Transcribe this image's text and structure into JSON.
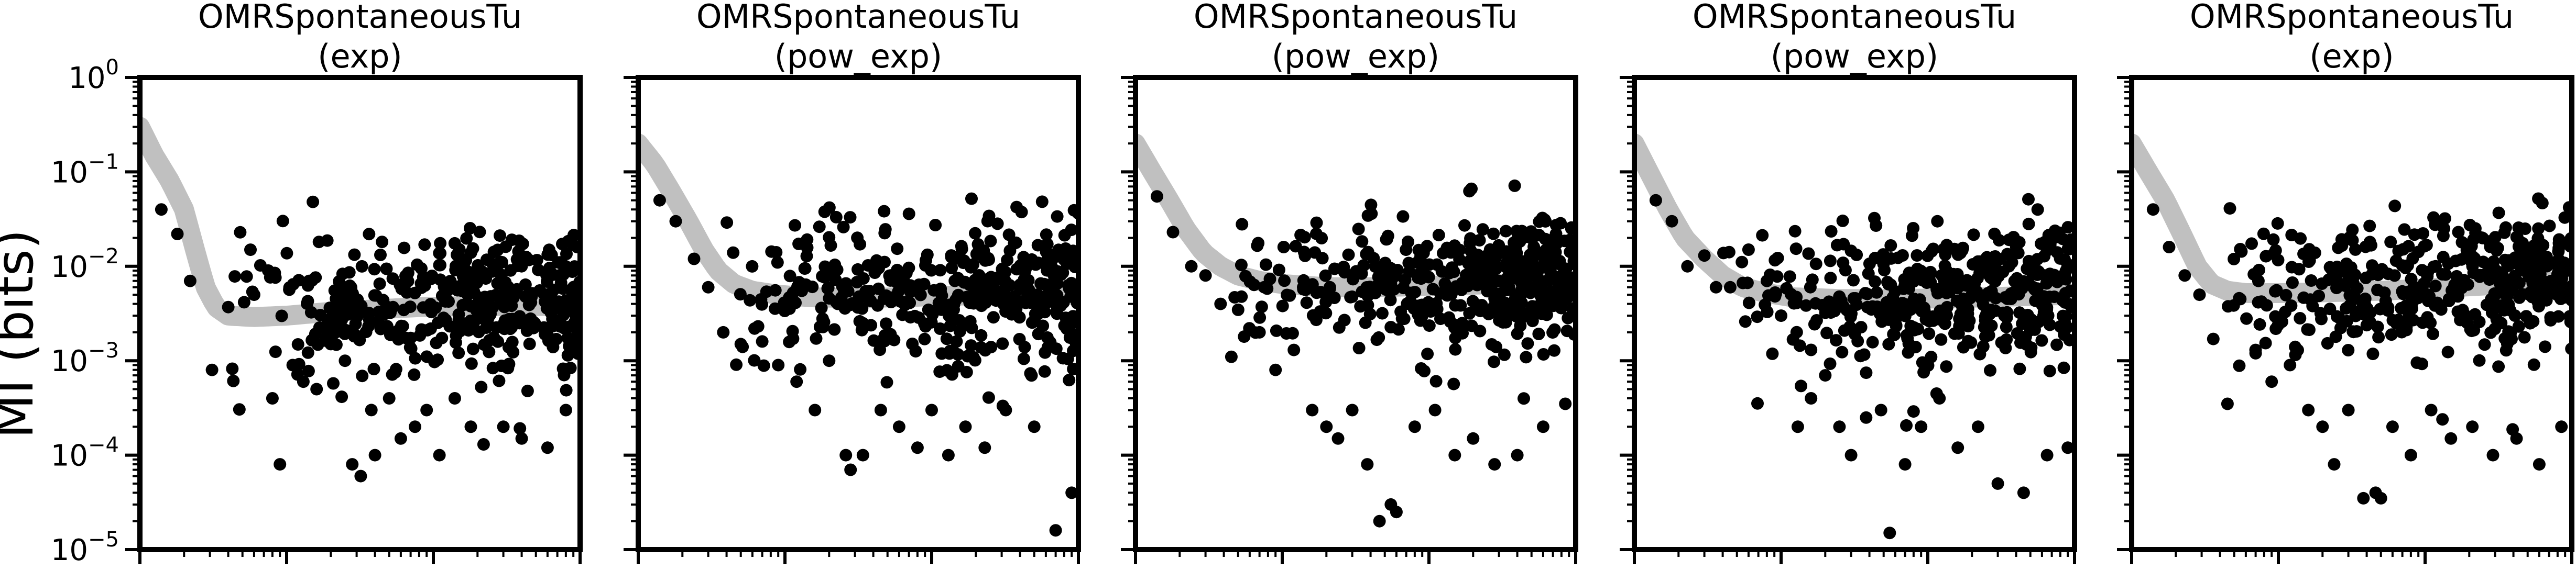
{
  "figure": {
    "ylabel": "MI (bits)"
  },
  "chart_data": [
    {
      "type": "scatter",
      "title": "OMRSpontaneousTu\n(exp)",
      "ylabel": "MI (bits)",
      "xlabel": "",
      "yscale": "log",
      "xscale": "log",
      "ylim": [
        1e-05,
        1
      ],
      "xlim": [
        1,
        1000
      ],
      "yticks": [
        1,
        0.1,
        0.01,
        0.001,
        0.0001,
        1e-05
      ],
      "ytick_labels": [
        "10^0",
        "10^-1",
        "10^-2",
        "10^-3",
        "10^-4",
        "10^-5"
      ],
      "fit_color": "#c0c0c0",
      "point_color": "#000000",
      "fit_curve": [
        [
          1.0,
          0.3
        ],
        [
          1.25,
          0.15
        ],
        [
          1.6,
          0.08
        ],
        [
          2.0,
          0.04
        ],
        [
          2.4,
          0.014
        ],
        [
          2.8,
          0.006
        ],
        [
          3.3,
          0.0037
        ],
        [
          4.0,
          0.003
        ],
        [
          6.0,
          0.0029
        ],
        [
          10.0,
          0.003
        ],
        [
          20.0,
          0.0033
        ],
        [
          40.0,
          0.0035
        ],
        [
          80.0,
          0.0037
        ],
        [
          200.0,
          0.0038
        ],
        [
          1000.0,
          0.0038
        ]
      ],
      "seed": 11,
      "n_points": 420,
      "points": [
        [
          1.4,
          0.04
        ],
        [
          1.8,
          0.022
        ],
        [
          2.2,
          0.007
        ],
        [
          3.1,
          0.0008
        ],
        [
          4.0,
          0.0037
        ],
        [
          6.0,
          0.005
        ],
        [
          8.0,
          0.0004
        ],
        [
          9.0,
          8e-05
        ],
        [
          11.0,
          0.0009
        ],
        [
          13.0,
          0.0006
        ],
        [
          16.0,
          0.0005
        ],
        [
          20.0,
          0.0015
        ],
        [
          25.0,
          0.001
        ],
        [
          28.0,
          8e-05
        ],
        [
          32.0,
          6e-05
        ],
        [
          40.0,
          0.0001
        ],
        [
          50.0,
          0.0004
        ],
        [
          60.0,
          0.00015
        ],
        [
          75.0,
          0.0002
        ],
        [
          90.0,
          0.0003
        ],
        [
          110.0,
          0.0001
        ],
        [
          140.0,
          0.0004
        ],
        [
          180.0,
          0.0002
        ],
        [
          220.0,
          0.00013
        ],
        [
          300.0,
          0.0002
        ],
        [
          400.0,
          0.00015
        ],
        [
          600.0,
          0.00012
        ],
        [
          800.0,
          0.0003
        ]
      ]
    },
    {
      "type": "scatter",
      "title": "OMRSpontaneousTu\n(pow_exp)",
      "ylabel": "",
      "xlabel": "",
      "yscale": "log",
      "xscale": "log",
      "ylim": [
        1e-05,
        1
      ],
      "xlim": [
        1,
        1000
      ],
      "fit_color": "#c0c0c0",
      "point_color": "#000000",
      "fit_curve": [
        [
          1.0,
          0.2
        ],
        [
          1.3,
          0.12
        ],
        [
          1.7,
          0.06
        ],
        [
          2.2,
          0.03
        ],
        [
          2.8,
          0.015
        ],
        [
          3.5,
          0.009
        ],
        [
          4.5,
          0.0065
        ],
        [
          6.0,
          0.0055
        ],
        [
          9.0,
          0.005
        ],
        [
          15.0,
          0.0047
        ],
        [
          30.0,
          0.0046
        ],
        [
          60.0,
          0.0047
        ],
        [
          150.0,
          0.0049
        ],
        [
          400.0,
          0.005
        ],
        [
          1000.0,
          0.005
        ]
      ],
      "seed": 23,
      "n_points": 420,
      "points": [
        [
          1.4,
          0.05
        ],
        [
          1.8,
          0.03
        ],
        [
          2.4,
          0.012
        ],
        [
          3.0,
          0.006
        ],
        [
          3.8,
          0.002
        ],
        [
          5.0,
          0.0015
        ],
        [
          7.0,
          0.0016
        ],
        [
          9.0,
          0.0009
        ],
        [
          12.0,
          0.0006
        ],
        [
          16.0,
          0.0003
        ],
        [
          20.0,
          0.001
        ],
        [
          26.0,
          0.0001
        ],
        [
          28.0,
          7e-05
        ],
        [
          34.0,
          0.0001
        ],
        [
          45.0,
          0.0003
        ],
        [
          60.0,
          0.0002
        ],
        [
          80.0,
          0.00012
        ],
        [
          100.0,
          0.0003
        ],
        [
          130.0,
          0.0001
        ],
        [
          170.0,
          0.0002
        ],
        [
          230.0,
          0.00012
        ],
        [
          320.0,
          0.0003
        ],
        [
          500.0,
          0.0002
        ],
        [
          900.0,
          4e-05
        ],
        [
          700.0,
          1.6e-05
        ]
      ]
    },
    {
      "type": "scatter",
      "title": "OMRSpontaneousTu\n(pow_exp)",
      "ylabel": "",
      "xlabel": "",
      "yscale": "log",
      "xscale": "log",
      "ylim": [
        1e-05,
        1
      ],
      "xlim": [
        1,
        1000
      ],
      "fit_color": "#c0c0c0",
      "point_color": "#000000",
      "fit_curve": [
        [
          1.0,
          0.2
        ],
        [
          1.3,
          0.1
        ],
        [
          1.7,
          0.05
        ],
        [
          2.2,
          0.025
        ],
        [
          2.9,
          0.014
        ],
        [
          3.8,
          0.01
        ],
        [
          5.0,
          0.008
        ],
        [
          7.0,
          0.007
        ],
        [
          10.0,
          0.0065
        ],
        [
          20.0,
          0.006
        ],
        [
          40.0,
          0.006
        ],
        [
          100.0,
          0.0062
        ],
        [
          300.0,
          0.0065
        ],
        [
          1000.0,
          0.0068
        ]
      ],
      "seed": 37,
      "n_points": 420,
      "points": [
        [
          1.4,
          0.055
        ],
        [
          1.8,
          0.023
        ],
        [
          2.4,
          0.01
        ],
        [
          3.0,
          0.008
        ],
        [
          3.8,
          0.004
        ],
        [
          4.5,
          0.0011
        ],
        [
          5.5,
          0.0018
        ],
        [
          7.0,
          0.002
        ],
        [
          9.0,
          0.0008
        ],
        [
          12.0,
          0.0013
        ],
        [
          16.0,
          0.0003
        ],
        [
          20.0,
          0.0002
        ],
        [
          24.0,
          0.00015
        ],
        [
          30.0,
          0.0003
        ],
        [
          38.0,
          8e-05
        ],
        [
          46.0,
          2e-05
        ],
        [
          55.0,
          3e-05
        ],
        [
          60.0,
          2.5e-05
        ],
        [
          80.0,
          0.0002
        ],
        [
          110.0,
          0.0003
        ],
        [
          150.0,
          0.0001
        ],
        [
          200.0,
          0.00015
        ],
        [
          280.0,
          8e-05
        ],
        [
          400.0,
          0.0001
        ],
        [
          600.0,
          0.0002
        ],
        [
          850.0,
          0.00035
        ]
      ]
    },
    {
      "type": "scatter",
      "title": "OMRSpontaneousTu\n(pow_exp)",
      "ylabel": "",
      "xlabel": "",
      "yscale": "log",
      "xscale": "log",
      "ylim": [
        1e-05,
        1
      ],
      "xlim": [
        1,
        1000
      ],
      "fit_color": "#c0c0c0",
      "point_color": "#000000",
      "fit_curve": [
        [
          1.0,
          0.2
        ],
        [
          1.3,
          0.09
        ],
        [
          1.7,
          0.04
        ],
        [
          2.2,
          0.02
        ],
        [
          3.0,
          0.012
        ],
        [
          4.0,
          0.008
        ],
        [
          5.5,
          0.006
        ],
        [
          8.0,
          0.0052
        ],
        [
          12.0,
          0.0047
        ],
        [
          25.0,
          0.0045
        ],
        [
          60.0,
          0.0045
        ],
        [
          150.0,
          0.0046
        ],
        [
          400.0,
          0.0048
        ],
        [
          1000.0,
          0.005
        ]
      ],
      "seed": 41,
      "n_points": 420,
      "points": [
        [
          1.4,
          0.05
        ],
        [
          1.8,
          0.03
        ],
        [
          2.3,
          0.01
        ],
        [
          3.0,
          0.013
        ],
        [
          3.6,
          0.006
        ],
        [
          4.5,
          0.006
        ],
        [
          6.0,
          0.015
        ],
        [
          8.0,
          0.007
        ],
        [
          10.0,
          0.003
        ],
        [
          13.0,
          0.0002
        ],
        [
          16.0,
          0.0004
        ],
        [
          20.0,
          0.0007
        ],
        [
          25.0,
          0.0002
        ],
        [
          30.0,
          0.0001
        ],
        [
          38.0,
          0.00025
        ],
        [
          48.0,
          0.0003
        ],
        [
          55.0,
          1.5e-05
        ],
        [
          70.0,
          8e-05
        ],
        [
          90.0,
          0.0002
        ],
        [
          120.0,
          0.0004
        ],
        [
          160.0,
          0.00012
        ],
        [
          220.0,
          0.0002
        ],
        [
          300.0,
          5e-05
        ],
        [
          450.0,
          4e-05
        ],
        [
          650.0,
          0.0001
        ],
        [
          900.0,
          0.00012
        ]
      ]
    },
    {
      "type": "scatter",
      "title": "OMRSpontaneousTu\n(exp)",
      "ylabel": "",
      "xlabel": "",
      "yscale": "log",
      "xscale": "log",
      "ylim": [
        1e-05,
        1
      ],
      "xlim": [
        1,
        1000
      ],
      "fit_color": "#c0c0c0",
      "point_color": "#000000",
      "fit_curve": [
        [
          1.0,
          0.2
        ],
        [
          1.3,
          0.1
        ],
        [
          1.7,
          0.05
        ],
        [
          2.2,
          0.022
        ],
        [
          2.8,
          0.01
        ],
        [
          3.5,
          0.0065
        ],
        [
          4.5,
          0.0055
        ],
        [
          6.0,
          0.0052
        ],
        [
          10.0,
          0.0052
        ],
        [
          20.0,
          0.0053
        ],
        [
          50.0,
          0.0055
        ],
        [
          150.0,
          0.006
        ],
        [
          400.0,
          0.0065
        ],
        [
          1000.0,
          0.007
        ]
      ],
      "seed": 53,
      "n_points": 420,
      "points": [
        [
          1.4,
          0.04
        ],
        [
          1.8,
          0.016
        ],
        [
          2.3,
          0.008
        ],
        [
          2.9,
          0.005
        ],
        [
          3.6,
          0.0017
        ],
        [
          4.5,
          0.00035
        ],
        [
          5.5,
          0.0045
        ],
        [
          7.0,
          0.0012
        ],
        [
          9.0,
          0.0006
        ],
        [
          12.0,
          0.0009
        ],
        [
          16.0,
          0.0003
        ],
        [
          20.0,
          0.0002
        ],
        [
          24.0,
          8e-05
        ],
        [
          30.0,
          0.0003
        ],
        [
          38.0,
          3.5e-05
        ],
        [
          46.0,
          4e-05
        ],
        [
          50.0,
          3.5e-05
        ],
        [
          60.0,
          0.0002
        ],
        [
          80.0,
          0.0001
        ],
        [
          110.0,
          0.0003
        ],
        [
          150.0,
          0.00015
        ],
        [
          210.0,
          0.0002
        ],
        [
          290.0,
          0.0001
        ],
        [
          420.0,
          0.00015
        ],
        [
          600.0,
          8e-05
        ],
        [
          850.0,
          0.0002
        ]
      ]
    }
  ]
}
